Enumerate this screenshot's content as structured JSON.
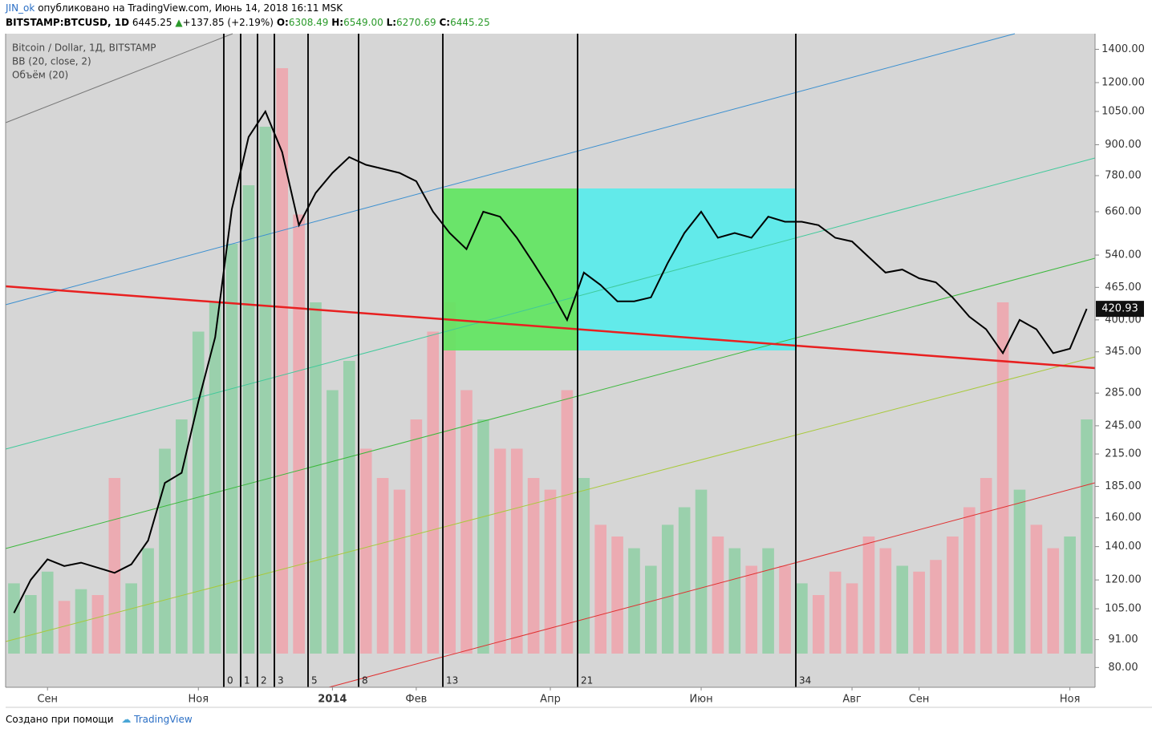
{
  "header": {
    "user": "JIN_ok",
    "published": "опубликовано на TradingView.com, Июнь 14, 2018 16:11 MSK"
  },
  "ticker": {
    "symbol": "BITSTAMP:BTCUSD, 1D",
    "price": "6445.25",
    "change": "+137.85 (+2.19%)",
    "o_label": "O:",
    "o": "6308.49",
    "h_label": "H:",
    "h": "6549.00",
    "l_label": "L:",
    "l": "6270.69",
    "c_label": "C:",
    "c": "6445.25"
  },
  "chart_data": {
    "type": "line",
    "log_scale": true,
    "indicators": [
      "BB (20, close, 2)"
    ],
    "categories": [
      null,
      null,
      "Сен",
      null,
      null,
      null,
      null,
      null,
      null,
      null,
      null,
      "Ноя",
      null,
      null,
      null,
      null,
      null,
      null,
      null,
      "2014",
      null,
      null,
      null,
      null,
      "Фев",
      null,
      null,
      null,
      null,
      null,
      null,
      null,
      "Апр",
      null,
      null,
      null,
      null,
      null,
      null,
      null,
      null,
      "Июн",
      null,
      null,
      null,
      null,
      null,
      null,
      null,
      null,
      "Авг",
      null,
      null,
      null,
      "Сен",
      null,
      null,
      null,
      null,
      null,
      null,
      null,
      null,
      "Ноя",
      null
    ],
    "series": [
      {
        "name": "Bitcoin / Dollar, 1Д, BITSTAMP",
        "color": "#000000",
        "values": [
          103,
          120,
          132,
          128,
          130,
          127,
          124,
          129,
          144,
          188,
          197,
          274,
          369,
          668,
          933,
          1050,
          870,
          620,
          720,
          790,
          850,
          820,
          805,
          790,
          760,
          660,
          598,
          555,
          660,
          645,
          585,
          520,
          460,
          400,
          498,
          470,
          436,
          436,
          444,
          520,
          598,
          660,
          585,
          598,
          585,
          645,
          630,
          630,
          620,
          585,
          575,
          535,
          498,
          505,
          485,
          476,
          444,
          406,
          383,
          343,
          400,
          383,
          343,
          350,
          420.93
        ]
      }
    ],
    "volume": {
      "name": "Объём (20)",
      "up_color": "#8fcfa4",
      "down_color": "#f0a3ab",
      "values": [
        12,
        10,
        14,
        9,
        11,
        10,
        30,
        12,
        18,
        35,
        40,
        55,
        60,
        70,
        80,
        90,
        100,
        75,
        60,
        45,
        50,
        35,
        30,
        28,
        40,
        55,
        60,
        45,
        40,
        35,
        35,
        30,
        28,
        45,
        30,
        22,
        20,
        18,
        15,
        22,
        25,
        28,
        20,
        18,
        15,
        18,
        15,
        12,
        10,
        14,
        12,
        20,
        18,
        15,
        14,
        16,
        20,
        25,
        30,
        60,
        28,
        22,
        18,
        20,
        40
      ]
    },
    "ylim": [
      73,
      1505
    ],
    "yticks": [
      {
        "value": 80,
        "label": "80.00"
      },
      {
        "value": 91,
        "label": "91.00"
      },
      {
        "value": 105,
        "label": "105.00"
      },
      {
        "value": 120,
        "label": "120.00"
      },
      {
        "value": 140,
        "label": "140.00"
      },
      {
        "value": 160,
        "label": "160.00"
      },
      {
        "value": 185,
        "label": "185.00"
      },
      {
        "value": 215,
        "label": "215.00"
      },
      {
        "value": 245,
        "label": "245.00"
      },
      {
        "value": 285,
        "label": "285.00"
      },
      {
        "value": 345,
        "label": "345.00"
      },
      {
        "value": 400,
        "label": "400.00"
      },
      {
        "value": 465,
        "label": "465.00"
      },
      {
        "value": 540,
        "label": "540.00"
      },
      {
        "value": 660,
        "label": "660.00"
      },
      {
        "value": 780,
        "label": "780.00"
      },
      {
        "value": 900,
        "label": "900.00"
      },
      {
        "value": 1050,
        "label": "1050.00"
      },
      {
        "value": 1200,
        "label": "1200.00"
      },
      {
        "value": 1400,
        "label": "1400.00"
      }
    ],
    "fib_time": [
      0,
      1,
      2,
      3,
      5,
      8,
      13,
      21,
      34
    ]
  },
  "footer": {
    "text": "Создано при помощи",
    "brand": "TradingView"
  }
}
